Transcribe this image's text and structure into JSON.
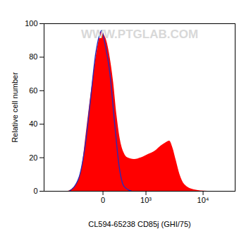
{
  "chart_data": {
    "type": "histogram",
    "x_label": "CL594-65238 CD85j (GHI/75)",
    "y_label": "Relative cell number",
    "log": "x",
    "xlim": [
      -2000,
      33000
    ],
    "xticks": [
      {
        "value": 0,
        "label": "0"
      },
      {
        "value": 1000,
        "label": "10³"
      },
      {
        "value": 10000,
        "label": "10⁴"
      }
    ],
    "ylim": [
      0,
      100
    ],
    "yticks": [
      0,
      20,
      40,
      60,
      80,
      100
    ],
    "annotations": [
      {
        "text": "WWW.PTGLAB.COM"
      }
    ],
    "series": [
      {
        "type": "area",
        "color": "#ff0000",
        "x": [
          -680,
          -470,
          -300,
          -210,
          -122,
          -59,
          -13,
          13,
          36,
          76,
          122,
          173,
          234,
          300,
          380,
          562,
          806,
          1120,
          1510,
          1920,
          2370,
          2730,
          3100,
          3570,
          4100,
          4940,
          7000,
          11900
        ],
        "values": [
          0,
          3,
          15,
          38,
          65,
          85,
          95,
          93,
          90,
          80,
          65,
          45,
          30,
          23,
          20,
          19,
          20,
          22,
          24,
          27,
          29,
          30,
          26,
          18,
          10,
          4,
          1,
          0
        ]
      },
      {
        "type": "line",
        "color": "#2a2ab8",
        "x": [
          -640,
          -370,
          -250,
          -150,
          -80,
          -37,
          -13,
          20,
          76,
          140,
          210,
          300,
          480
        ],
        "values": [
          0,
          8,
          25,
          55,
          82,
          93,
          96,
          88,
          70,
          40,
          15,
          3,
          0
        ]
      }
    ]
  }
}
